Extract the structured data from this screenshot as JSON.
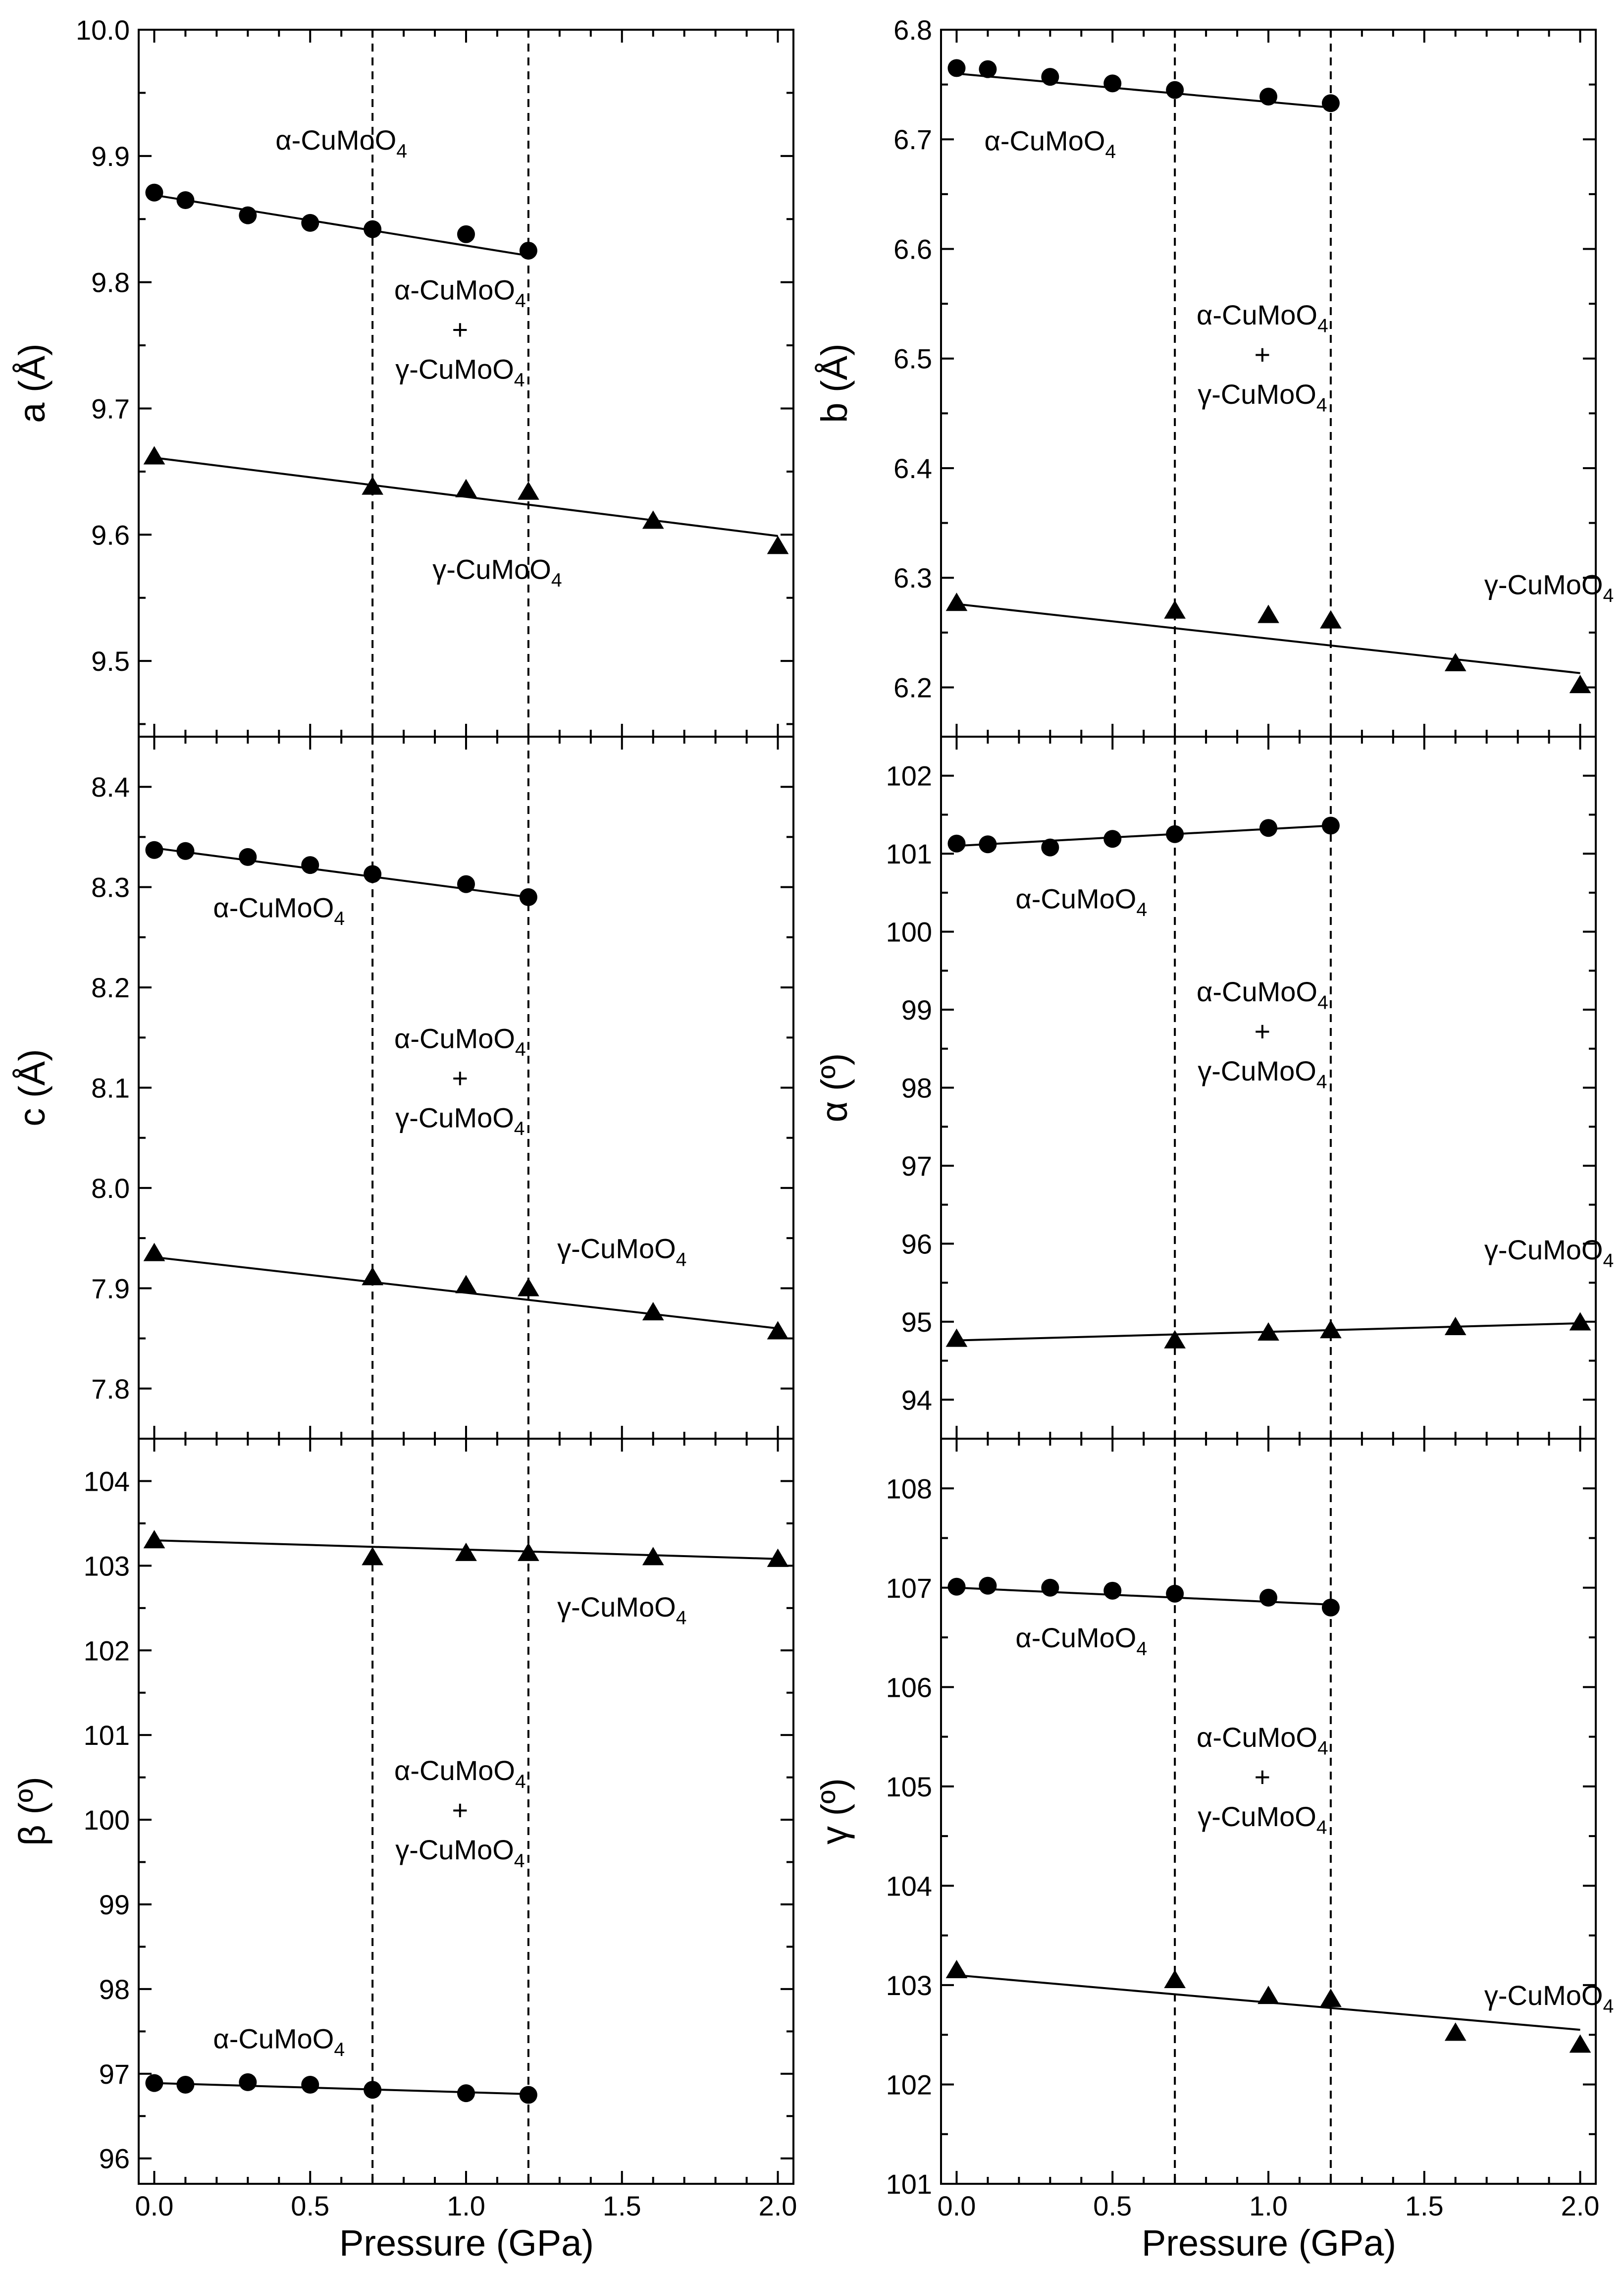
{
  "x_axis_label": "Pressure (GPa)",
  "mixed_label": {
    "line1": "α-CuMoO4",
    "plus": "+",
    "line2": "γ-CuMoO4"
  },
  "chart_data": [
    {
      "id": "a",
      "type": "scatter",
      "ylabel": "a (Å)",
      "xlim": [
        -0.05,
        2.05
      ],
      "ylim": [
        9.44,
        10.0
      ],
      "yticks": [
        "9.5",
        "9.6",
        "9.7",
        "9.8",
        "9.9",
        "10.0"
      ],
      "xticks": [
        "0.0",
        "0.5",
        "1.0",
        "1.5",
        "2.0"
      ],
      "boundaries": [
        0.7,
        1.2
      ],
      "series": [
        {
          "name": "α-CuMoO4",
          "marker": "circle",
          "x": [
            0.0,
            0.1,
            0.3,
            0.5,
            0.7,
            1.0,
            1.2
          ],
          "y": [
            9.871,
            9.865,
            9.853,
            9.847,
            9.842,
            9.838,
            9.825
          ],
          "fit": [
            [
              0.0,
              9.869
            ],
            [
              1.2,
              9.821
            ]
          ]
        },
        {
          "name": "γ-CuMoO4",
          "marker": "triangle",
          "x": [
            0.0,
            0.7,
            1.0,
            1.2,
            1.6,
            2.0
          ],
          "y": [
            9.662,
            9.638,
            9.636,
            9.634,
            9.611,
            9.591
          ],
          "fit": [
            [
              0.0,
              9.661
            ],
            [
              2.0,
              9.599
            ]
          ]
        }
      ],
      "labels": {
        "alpha": "α-CuMoO4",
        "gamma": "γ-CuMoO4"
      }
    },
    {
      "id": "b",
      "type": "scatter",
      "ylabel": "b (Å)",
      "xlim": [
        -0.05,
        2.05
      ],
      "ylim": [
        6.155,
        6.8
      ],
      "yticks": [
        "6.2",
        "6.3",
        "6.4",
        "6.5",
        "6.6",
        "6.7",
        "6.8"
      ],
      "xticks": [
        "0.0",
        "0.5",
        "1.0",
        "1.5",
        "2.0"
      ],
      "boundaries": [
        0.7,
        1.2
      ],
      "series": [
        {
          "name": "α-CuMoO4",
          "marker": "circle",
          "x": [
            0.0,
            0.1,
            0.3,
            0.5,
            0.7,
            1.0,
            1.2
          ],
          "y": [
            6.765,
            6.764,
            6.757,
            6.751,
            6.745,
            6.739,
            6.733
          ],
          "fit": [
            [
              0.0,
              6.76
            ],
            [
              1.2,
              6.729
            ]
          ]
        },
        {
          "name": "γ-CuMoO4",
          "marker": "triangle",
          "x": [
            0.0,
            0.7,
            1.0,
            1.2,
            1.6,
            2.0
          ],
          "y": [
            6.277,
            6.27,
            6.266,
            6.261,
            6.222,
            6.202
          ],
          "fit": [
            [
              0.0,
              6.276
            ],
            [
              2.0,
              6.213
            ]
          ]
        }
      ],
      "labels": {
        "alpha": "α-CuMoO4",
        "gamma": "γ-CuMoO4"
      }
    },
    {
      "id": "c",
      "type": "scatter",
      "ylabel": "c (Å)",
      "xlim": [
        -0.05,
        2.05
      ],
      "ylim": [
        7.75,
        8.45
      ],
      "yticks": [
        "7.8",
        "7.9",
        "8.0",
        "8.1",
        "8.2",
        "8.3",
        "8.4"
      ],
      "xticks": [
        "0.0",
        "0.5",
        "1.0",
        "1.5",
        "2.0"
      ],
      "boundaries": [
        0.7,
        1.2
      ],
      "series": [
        {
          "name": "α-CuMoO4",
          "marker": "circle",
          "x": [
            0.0,
            0.1,
            0.3,
            0.5,
            0.7,
            1.0,
            1.2
          ],
          "y": [
            8.337,
            8.336,
            8.33,
            8.322,
            8.313,
            8.303,
            8.29
          ],
          "fit": [
            [
              0.0,
              8.339
            ],
            [
              1.2,
              8.29
            ]
          ]
        },
        {
          "name": "γ-CuMoO4",
          "marker": "triangle",
          "x": [
            0.0,
            0.7,
            1.0,
            1.2,
            1.6,
            2.0
          ],
          "y": [
            7.935,
            7.911,
            7.903,
            7.9,
            7.876,
            7.857
          ],
          "fit": [
            [
              0.0,
              7.931
            ],
            [
              2.0,
              7.86
            ]
          ]
        }
      ],
      "labels": {
        "alpha": "α-CuMoO4",
        "gamma": "γ-CuMoO4"
      }
    },
    {
      "id": "alpha",
      "type": "scatter",
      "ylabel": "α (º)",
      "xlim": [
        -0.05,
        2.05
      ],
      "ylim": [
        93.5,
        102.5
      ],
      "yticks": [
        "94",
        "95",
        "96",
        "97",
        "98",
        "99",
        "100",
        "101",
        "102"
      ],
      "xticks": [
        "0.0",
        "0.5",
        "1.0",
        "1.5",
        "2.0"
      ],
      "boundaries": [
        0.7,
        1.2
      ],
      "series": [
        {
          "name": "α-CuMoO4",
          "marker": "circle",
          "x": [
            0.0,
            0.1,
            0.3,
            0.5,
            0.7,
            1.0,
            1.2
          ],
          "y": [
            101.13,
            101.12,
            101.08,
            101.19,
            101.25,
            101.33,
            101.36
          ],
          "fit": [
            [
              0.0,
              101.1
            ],
            [
              1.2,
              101.36
            ]
          ]
        },
        {
          "name": "γ-CuMoO4",
          "marker": "triangle",
          "x": [
            0.0,
            0.7,
            1.0,
            1.2,
            1.6,
            2.0
          ],
          "y": [
            94.78,
            94.76,
            94.86,
            94.89,
            94.93,
            94.99
          ],
          "fit": [
            [
              0.0,
              94.76
            ],
            [
              2.0,
              94.98
            ]
          ]
        }
      ],
      "labels": {
        "alpha": "α-CuMoO4",
        "gamma": "γ-CuMoO4"
      }
    },
    {
      "id": "beta",
      "type": "scatter",
      "ylabel": "β (º)",
      "xlim": [
        -0.05,
        2.05
      ],
      "ylim": [
        95.7,
        104.5
      ],
      "yticks": [
        "96",
        "97",
        "98",
        "99",
        "100",
        "101",
        "102",
        "103",
        "104"
      ],
      "xticks": [
        "0.0",
        "0.5",
        "1.0",
        "1.5",
        "2.0"
      ],
      "boundaries": [
        0.7,
        1.2
      ],
      "series": [
        {
          "name": "α-CuMoO4",
          "marker": "circle",
          "x": [
            0.0,
            0.1,
            0.3,
            0.5,
            0.7,
            1.0,
            1.2
          ],
          "y": [
            96.89,
            96.87,
            96.9,
            96.87,
            96.81,
            96.77,
            96.75
          ],
          "fit": [
            [
              0.0,
              96.89
            ],
            [
              1.2,
              96.76
            ]
          ]
        },
        {
          "name": "γ-CuMoO4",
          "marker": "triangle",
          "x": [
            0.0,
            0.7,
            1.0,
            1.2,
            1.6,
            2.0
          ],
          "y": [
            103.3,
            103.1,
            103.15,
            103.15,
            103.1,
            103.08
          ],
          "fit": [
            [
              0.0,
              103.3
            ],
            [
              2.0,
              103.08
            ]
          ]
        }
      ],
      "labels": {
        "alpha": "α-CuMoO4",
        "gamma": "γ-CuMoO4"
      }
    },
    {
      "id": "gamma",
      "type": "scatter",
      "ylabel": "γ (º)",
      "xlim": [
        -0.05,
        2.05
      ],
      "ylim": [
        101.0,
        108.5
      ],
      "yticks": [
        "101",
        "102",
        "103",
        "104",
        "105",
        "106",
        "107",
        "108"
      ],
      "xticks": [
        "0.0",
        "0.5",
        "1.0",
        "1.5",
        "2.0"
      ],
      "boundaries": [
        0.7,
        1.2
      ],
      "series": [
        {
          "name": "α-CuMoO4",
          "marker": "circle",
          "x": [
            0.0,
            0.1,
            0.3,
            0.5,
            0.7,
            1.0,
            1.2
          ],
          "y": [
            107.01,
            107.02,
            107.0,
            106.97,
            106.94,
            106.9,
            106.8
          ],
          "fit": [
            [
              0.0,
              107.0
            ],
            [
              1.2,
              106.83
            ]
          ]
        },
        {
          "name": "γ-CuMoO4",
          "marker": "triangle",
          "x": [
            0.0,
            0.7,
            1.0,
            1.2,
            1.6,
            2.0
          ],
          "y": [
            103.15,
            103.05,
            102.89,
            102.86,
            102.52,
            102.4
          ],
          "fit": [
            [
              0.0,
              103.1
            ],
            [
              2.0,
              102.55
            ]
          ]
        }
      ],
      "labels": {
        "alpha": "α-CuMoO4",
        "gamma": "γ-CuMoO4"
      }
    }
  ]
}
